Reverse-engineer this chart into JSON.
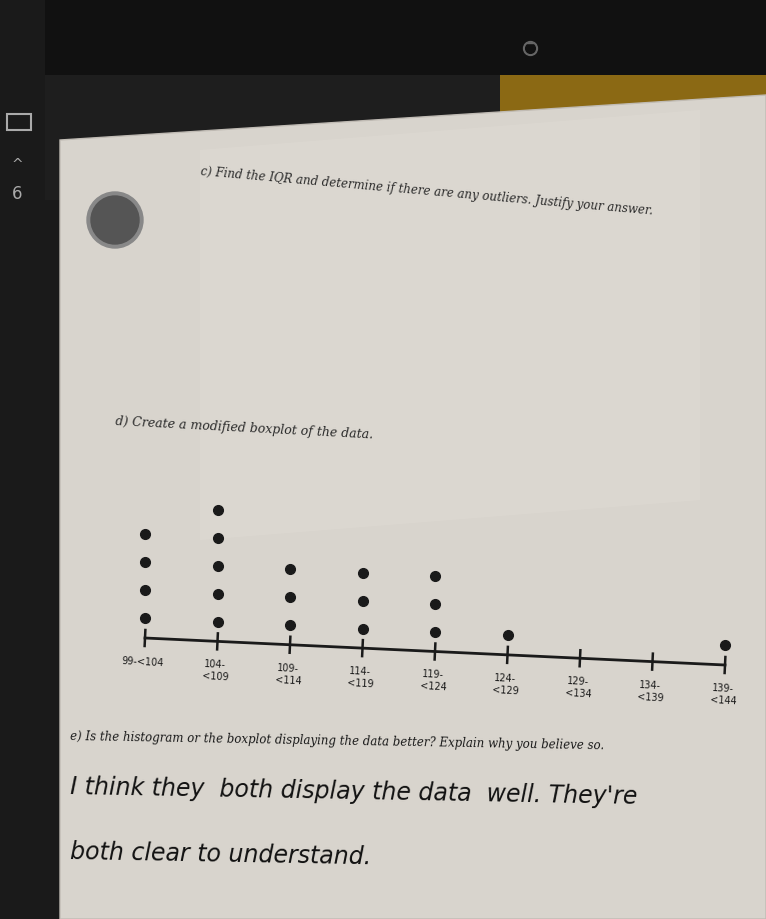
{
  "title_c": "c) Find the IQR and determine if there are any outliers. Justify your answer.",
  "title_d": "d) Create a modified boxplot of the data.",
  "title_e": "e) Is the histogram or the boxplot displaying the data better? Explain why you believe so.",
  "handwritten_line1": "I think they  both display the data well. They're",
  "handwritten_line2": "both clear to understand.",
  "dot_counts": [
    4,
    5,
    3,
    3,
    3,
    1,
    0,
    0,
    1
  ],
  "x_labels_top": [
    "99-<104",
    "104-",
    "109-",
    "114-",
    "119-",
    "124-",
    "129-",
    "134-",
    "139-"
  ],
  "x_labels_bot": [
    "",
    "<109",
    "<114",
    "<119",
    "<124",
    "<129",
    "<134",
    "<139",
    "<144"
  ],
  "bg_dark": "#2a2a2a",
  "bg_wood": "#8B6914",
  "paper_color": "#ddd9d2",
  "text_color": "#2a2a2a",
  "dot_color": "#2a2a2a",
  "handwrite_color": "#1a1a1a",
  "fig_width": 7.66,
  "fig_height": 9.19
}
